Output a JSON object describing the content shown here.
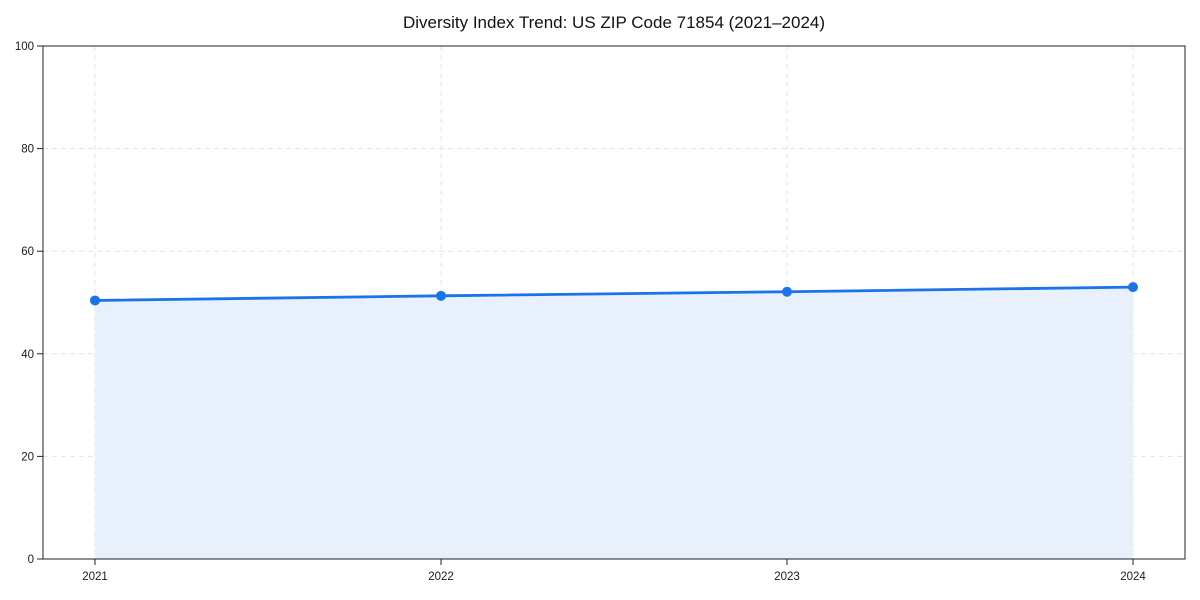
{
  "chart_data": {
    "type": "area",
    "title": "Diversity Index Trend: US ZIP Code 71854 (2021–2024)",
    "x": [
      "2021",
      "2022",
      "2023",
      "2024"
    ],
    "series": [
      {
        "name": "Diversity Index",
        "values": [
          50.4,
          51.3,
          52.1,
          53.0
        ]
      }
    ],
    "xlabel": "",
    "ylabel": "",
    "ylim": [
      0,
      100
    ],
    "yticks": [
      0,
      20,
      40,
      60,
      80,
      100
    ],
    "grid": true,
    "grid_style": "dashed",
    "legend_position": "none",
    "colors": {
      "line": "#1a73e8",
      "marker": "#1a73e8",
      "fill": "#e8f0fc",
      "grid": "#e3e3e3",
      "axis": "#222222",
      "tick_label": "#1a1a1a",
      "background": "#ffffff"
    }
  }
}
